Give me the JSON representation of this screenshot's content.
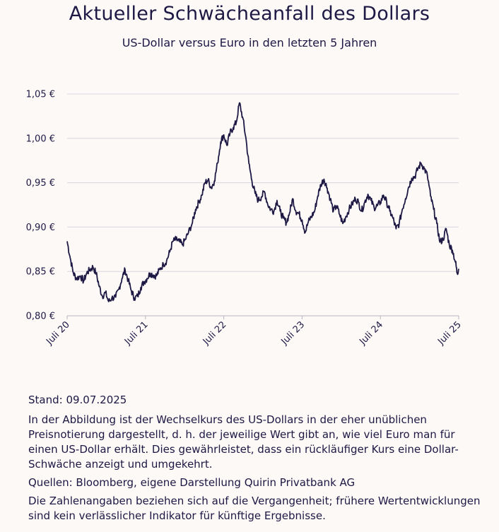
{
  "header": {
    "title": "Aktueller Schwächeanfall des Dollars",
    "subtitle": "US-Dollar versus Euro in den letzten 5 Jahren"
  },
  "chart_data": {
    "type": "line",
    "title": "Aktueller Schwächeanfall des Dollars",
    "subtitle": "US-Dollar versus Euro in den letzten 5 Jahren",
    "xlabel": "",
    "ylabel": "",
    "y_ticks": [
      {
        "value": 0.8,
        "label": "0,80 €"
      },
      {
        "value": 0.85,
        "label": "0,85 €"
      },
      {
        "value": 0.9,
        "label": "0,90 €"
      },
      {
        "value": 0.95,
        "label": "0,95 €"
      },
      {
        "value": 1.0,
        "label": "1,00 €"
      },
      {
        "value": 1.05,
        "label": "1,05 €"
      }
    ],
    "x_ticks": [
      {
        "value": 0,
        "label": "Juli 20"
      },
      {
        "value": 1,
        "label": "Juli 21"
      },
      {
        "value": 2,
        "label": "Juli 22"
      },
      {
        "value": 3,
        "label": "Juli 23"
      },
      {
        "value": 4,
        "label": "Juli 24"
      },
      {
        "value": 5,
        "label": "Juli 25"
      }
    ],
    "ylim": [
      0.8,
      1.05
    ],
    "xlim": [
      0,
      5
    ],
    "grid": "horizontal",
    "line_color": "#1d1844",
    "grid_color": "#d9d6de",
    "series": [
      {
        "values": [
          [
            0.0,
            0.884
          ],
          [
            0.04,
            0.865
          ],
          [
            0.08,
            0.848
          ],
          [
            0.12,
            0.842
          ],
          [
            0.17,
            0.845
          ],
          [
            0.21,
            0.839
          ],
          [
            0.25,
            0.848
          ],
          [
            0.29,
            0.852
          ],
          [
            0.33,
            0.855
          ],
          [
            0.37,
            0.848
          ],
          [
            0.41,
            0.833
          ],
          [
            0.45,
            0.822
          ],
          [
            0.49,
            0.826
          ],
          [
            0.53,
            0.816
          ],
          [
            0.57,
            0.82
          ],
          [
            0.62,
            0.821
          ],
          [
            0.66,
            0.83
          ],
          [
            0.7,
            0.842
          ],
          [
            0.74,
            0.852
          ],
          [
            0.78,
            0.84
          ],
          [
            0.82,
            0.828
          ],
          [
            0.86,
            0.82
          ],
          [
            0.9,
            0.822
          ],
          [
            0.94,
            0.832
          ],
          [
            0.98,
            0.838
          ],
          [
            1.02,
            0.842
          ],
          [
            1.06,
            0.848
          ],
          [
            1.1,
            0.846
          ],
          [
            1.14,
            0.845
          ],
          [
            1.18,
            0.852
          ],
          [
            1.23,
            0.858
          ],
          [
            1.27,
            0.862
          ],
          [
            1.31,
            0.872
          ],
          [
            1.35,
            0.884
          ],
          [
            1.39,
            0.886
          ],
          [
            1.43,
            0.884
          ],
          [
            1.47,
            0.88
          ],
          [
            1.51,
            0.886
          ],
          [
            1.55,
            0.894
          ],
          [
            1.6,
            0.905
          ],
          [
            1.64,
            0.92
          ],
          [
            1.68,
            0.928
          ],
          [
            1.72,
            0.936
          ],
          [
            1.76,
            0.95
          ],
          [
            1.8,
            0.953
          ],
          [
            1.84,
            0.944
          ],
          [
            1.88,
            0.952
          ],
          [
            1.92,
            0.972
          ],
          [
            1.96,
            0.996
          ],
          [
            2.0,
            1.004
          ],
          [
            2.04,
            0.992
          ],
          [
            2.08,
            1.006
          ],
          [
            2.12,
            1.012
          ],
          [
            2.16,
            1.018
          ],
          [
            2.2,
            1.04
          ],
          [
            2.24,
            1.024
          ],
          [
            2.28,
            1.002
          ],
          [
            2.32,
            0.972
          ],
          [
            2.36,
            0.952
          ],
          [
            2.4,
            0.938
          ],
          [
            2.44,
            0.93
          ],
          [
            2.48,
            0.934
          ],
          [
            2.52,
            0.94
          ],
          [
            2.56,
            0.926
          ],
          [
            2.6,
            0.92
          ],
          [
            2.64,
            0.918
          ],
          [
            2.68,
            0.93
          ],
          [
            2.72,
            0.918
          ],
          [
            2.76,
            0.91
          ],
          [
            2.8,
            0.905
          ],
          [
            2.84,
            0.916
          ],
          [
            2.88,
            0.932
          ],
          [
            2.92,
            0.918
          ],
          [
            2.96,
            0.915
          ],
          [
            3.0,
            0.908
          ],
          [
            3.04,
            0.894
          ],
          [
            3.08,
            0.906
          ],
          [
            3.12,
            0.912
          ],
          [
            3.16,
            0.918
          ],
          [
            3.2,
            0.935
          ],
          [
            3.24,
            0.948
          ],
          [
            3.28,
            0.954
          ],
          [
            3.32,
            0.944
          ],
          [
            3.36,
            0.932
          ],
          [
            3.4,
            0.918
          ],
          [
            3.44,
            0.924
          ],
          [
            3.48,
            0.914
          ],
          [
            3.52,
            0.904
          ],
          [
            3.56,
            0.912
          ],
          [
            3.6,
            0.92
          ],
          [
            3.64,
            0.926
          ],
          [
            3.68,
            0.932
          ],
          [
            3.72,
            0.928
          ],
          [
            3.76,
            0.918
          ],
          [
            3.8,
            0.928
          ],
          [
            3.84,
            0.937
          ],
          [
            3.88,
            0.93
          ],
          [
            3.92,
            0.922
          ],
          [
            3.96,
            0.924
          ],
          [
            4.0,
            0.928
          ],
          [
            4.04,
            0.936
          ],
          [
            4.08,
            0.928
          ],
          [
            4.12,
            0.918
          ],
          [
            4.16,
            0.91
          ],
          [
            4.2,
            0.898
          ],
          [
            4.24,
            0.904
          ],
          [
            4.28,
            0.92
          ],
          [
            4.32,
            0.932
          ],
          [
            4.36,
            0.945
          ],
          [
            4.4,
            0.955
          ],
          [
            4.44,
            0.957
          ],
          [
            4.48,
            0.966
          ],
          [
            4.52,
            0.972
          ],
          [
            4.56,
            0.966
          ],
          [
            4.6,
            0.958
          ],
          [
            4.64,
            0.935
          ],
          [
            4.68,
            0.92
          ],
          [
            4.72,
            0.904
          ],
          [
            4.76,
            0.883
          ],
          [
            4.8,
            0.886
          ],
          [
            4.84,
            0.898
          ],
          [
            4.88,
            0.88
          ],
          [
            4.92,
            0.874
          ],
          [
            4.96,
            0.86
          ],
          [
            4.98,
            0.848
          ],
          [
            5.0,
            0.853
          ]
        ]
      }
    ]
  },
  "notes": {
    "stand": "Stand: 09.07.2025",
    "description": "In der Abbildung ist der Wechselkurs des US-Dollars in der eher unüblichen Preisnotierung dargestellt, d. h. der jeweilige Wert gibt an, wie viel Euro man für einen US-Dollar erhält. Dies gewährleistet, dass ein rückläufiger Kurs eine Dollar-Schwäche anzeigt und umgekehrt.",
    "sources": "Quellen: Bloomberg, eigene Darstellung Quirin Privatbank AG",
    "disclaimer": "Die Zahlenangaben beziehen sich auf die Vergangenheit; frühere Wertentwicklungen sind kein verlässlicher Indikator für künftige Ergebnisse."
  }
}
